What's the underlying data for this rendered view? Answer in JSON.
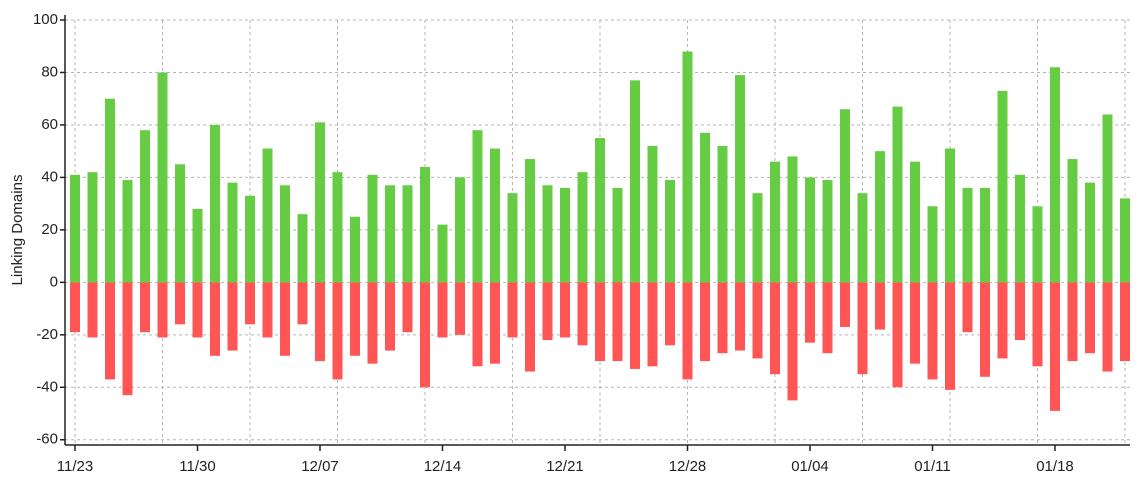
{
  "chart_data": {
    "type": "bar",
    "y_label": "Linking Domains",
    "categories": [
      "11/23",
      null,
      null,
      null,
      null,
      null,
      null,
      "11/30",
      null,
      null,
      null,
      null,
      null,
      null,
      "12/07",
      null,
      null,
      null,
      null,
      null,
      null,
      "12/14",
      null,
      null,
      null,
      null,
      null,
      null,
      "12/21",
      null,
      null,
      null,
      null,
      null,
      null,
      "12/28",
      null,
      null,
      null,
      null,
      null,
      null,
      "01/04",
      null,
      null,
      null,
      null,
      null,
      null,
      "01/11",
      null,
      null,
      null,
      null,
      null,
      null,
      "01/18",
      null,
      null,
      null,
      null
    ],
    "series": [
      {
        "color": "#66cc44",
        "values": [
          41,
          42,
          70,
          39,
          58,
          80,
          45,
          28,
          60,
          38,
          33,
          51,
          37,
          26,
          61,
          42,
          25,
          41,
          37,
          37,
          44,
          22,
          40,
          58,
          51,
          34,
          47,
          37,
          36,
          42,
          55,
          36,
          77,
          52,
          39,
          88,
          57,
          52,
          79,
          34,
          46,
          48,
          40,
          39,
          66,
          34,
          50,
          67,
          46,
          29,
          51,
          36,
          36,
          73,
          41,
          29,
          82,
          47,
          38,
          64,
          32
        ]
      },
      {
        "color": "#ff5555",
        "values": [
          -19,
          -21,
          -37,
          -43,
          -19,
          -21,
          -16,
          -21,
          -28,
          -26,
          -16,
          -21,
          -28,
          -16,
          -30,
          -37,
          -28,
          -31,
          -26,
          -19,
          -40,
          -21,
          -20,
          -32,
          -31,
          -21,
          -34,
          -22,
          -21,
          -24,
          -30,
          -30,
          -33,
          -32,
          -24,
          -37,
          -30,
          -27,
          -26,
          -29,
          -35,
          -45,
          -23,
          -27,
          -17,
          -35,
          -18,
          -40,
          -31,
          -37,
          -41,
          -19,
          -36,
          -29,
          -22,
          -32,
          -49,
          -30,
          -27,
          -34,
          -30
        ]
      }
    ],
    "ylim": [
      -62,
      100
    ],
    "yticks": [
      -60,
      -40,
      -20,
      0,
      20,
      40,
      60,
      80,
      100
    ],
    "grid": true
  }
}
